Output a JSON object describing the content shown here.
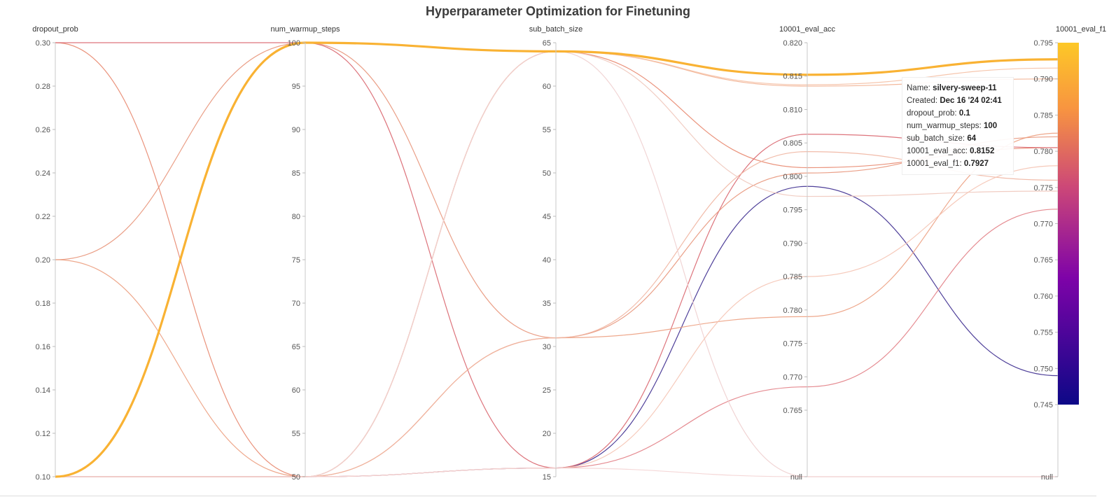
{
  "title": "Hyperparameter Optimization for Finetuning",
  "tooltip": {
    "rows": [
      {
        "label": "Name:",
        "value": "silvery-sweep-11"
      },
      {
        "label": "Created:",
        "value": "Dec 16 '24 02:41"
      },
      {
        "label": "dropout_prob:",
        "value": "0.1"
      },
      {
        "label": "num_warmup_steps:",
        "value": "100"
      },
      {
        "label": "sub_batch_size:",
        "value": "64"
      },
      {
        "label": "10001_eval_acc:",
        "value": "0.8152"
      },
      {
        "label": "10001_eval_f1:",
        "value": "0.7927"
      }
    ]
  },
  "chart_data": {
    "type": "parallel_coordinates",
    "axes": [
      {
        "name": "dropout_prob",
        "range": [
          0.1,
          0.3
        ],
        "ticks": [
          "0.30",
          "0.28",
          "0.26",
          "0.24",
          "0.22",
          "0.20",
          "0.18",
          "0.16",
          "0.14",
          "0.12",
          "0.10"
        ],
        "tick_values": [
          0.3,
          0.28,
          0.26,
          0.24,
          0.22,
          0.2,
          0.18,
          0.16,
          0.14,
          0.12,
          0.1
        ]
      },
      {
        "name": "num_warmup_steps",
        "range": [
          50,
          100
        ],
        "ticks": [
          "100",
          "95",
          "90",
          "85",
          "80",
          "75",
          "70",
          "65",
          "60",
          "55",
          "50"
        ],
        "tick_values": [
          100,
          95,
          90,
          85,
          80,
          75,
          70,
          65,
          60,
          55,
          50
        ]
      },
      {
        "name": "sub_batch_size",
        "range": [
          15,
          65
        ],
        "ticks": [
          "65",
          "60",
          "55",
          "50",
          "45",
          "40",
          "35",
          "30",
          "25",
          "20",
          "15"
        ],
        "tick_values": [
          65,
          60,
          55,
          50,
          45,
          40,
          35,
          30,
          25,
          20,
          15
        ]
      },
      {
        "name": "10001_eval_acc",
        "range": [
          0.76,
          0.82
        ],
        "ticks": [
          "0.820",
          "0.815",
          "0.810",
          "0.805",
          "0.800",
          "0.795",
          "0.790",
          "0.785",
          "0.780",
          "0.775",
          "0.770",
          "0.765",
          "null"
        ],
        "tick_values": [
          0.82,
          0.815,
          0.81,
          0.805,
          0.8,
          0.795,
          0.79,
          0.785,
          0.78,
          0.775,
          0.77,
          0.765,
          null
        ]
      },
      {
        "name": "10001_eval_f1",
        "range": [
          0.745,
          0.795
        ],
        "ticks": [
          "0.795",
          "0.790",
          "0.785",
          "0.780",
          "0.775",
          "0.770",
          "0.765",
          "0.760",
          "0.755",
          "0.750",
          "0.745",
          "null"
        ],
        "tick_values": [
          0.795,
          0.79,
          0.785,
          0.78,
          0.775,
          0.77,
          0.765,
          0.76,
          0.755,
          0.75,
          0.745,
          null
        ]
      }
    ],
    "colorbar": {
      "min": 0.745,
      "max": 0.795,
      "colors": [
        "#0d0887",
        "#7e03a8",
        "#cc4778",
        "#f89540",
        "#f0f921"
      ]
    },
    "series": [
      {
        "values": [
          0.1,
          100,
          64,
          0.8152,
          0.7927
        ],
        "color": "#f9b233",
        "highlight": true
      },
      {
        "values": [
          0.1,
          50,
          16,
          0.7985,
          0.749
        ],
        "color": "#3b2a8e"
      },
      {
        "values": [
          0.3,
          50,
          64,
          0.8013,
          0.7805
        ],
        "color": "#e8876e"
      },
      {
        "values": [
          0.3,
          100,
          16,
          0.8063,
          0.7805
        ],
        "color": "#d9656e"
      },
      {
        "values": [
          0.2,
          100,
          31,
          0.8005,
          0.782
        ],
        "color": "#e8957a"
      },
      {
        "values": [
          0.2,
          50,
          31,
          0.779,
          0.7825
        ],
        "color": "#ec9e80"
      },
      {
        "values": [
          0.1,
          50,
          16,
          0.7685,
          0.772
        ],
        "color": "#e27e85"
      },
      {
        "values": [
          0.1,
          50,
          31,
          0.8037,
          0.776
        ],
        "color": "#f0b4a0"
      },
      {
        "values": [
          0.1,
          50,
          64,
          0.8135,
          0.79
        ],
        "color": "#f2b090"
      },
      {
        "values": [
          0.1,
          50,
          64,
          0.8137,
          0.7915
        ],
        "color": "#f5c0a4"
      },
      {
        "values": [
          0.1,
          50,
          64,
          0.797,
          0.7745
        ],
        "color": "#f0c8bc"
      },
      {
        "values": [
          0.1,
          50,
          64,
          null,
          null
        ],
        "color": "#f0d0d0"
      },
      {
        "values": [
          0.1,
          50,
          16,
          0.785,
          0.778
        ],
        "color": "#f5c4b4"
      },
      {
        "values": [
          0.1,
          50,
          16,
          null,
          null
        ],
        "color": "#f4d4d4"
      }
    ]
  }
}
